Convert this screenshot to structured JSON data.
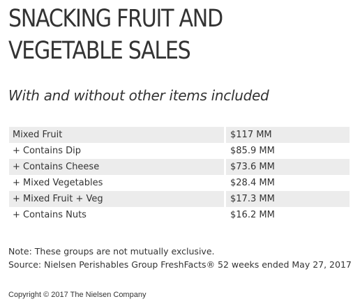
{
  "header": {
    "title_line1": "SNACKING FRUIT AND",
    "title_line2": "VEGETABLE SALES",
    "subtitle": "With and without other items included"
  },
  "table": {
    "rows": [
      {
        "category": "Mixed Fruit",
        "sales": "$117 MM"
      },
      {
        "category": "+ Contains Dip",
        "sales": "$85.9 MM"
      },
      {
        "category": "+ Contains Cheese",
        "sales": "$73.6 MM"
      },
      {
        "category": "+ Mixed Vegetables",
        "sales": "$28.4 MM"
      },
      {
        "category": "+ Mixed Fruit + Veg",
        "sales": "$17.3 MM"
      },
      {
        "category": "+ Contains Nuts",
        "sales": "$16.2 MM"
      }
    ]
  },
  "footer": {
    "note": "Note: These groups are not mutually exclusive.",
    "source": "Source: Nielsen Perishables Group FreshFacts® 52 weeks ended May 27, 2017",
    "copyright": "Copyright © 2017 The Nielsen Company"
  }
}
